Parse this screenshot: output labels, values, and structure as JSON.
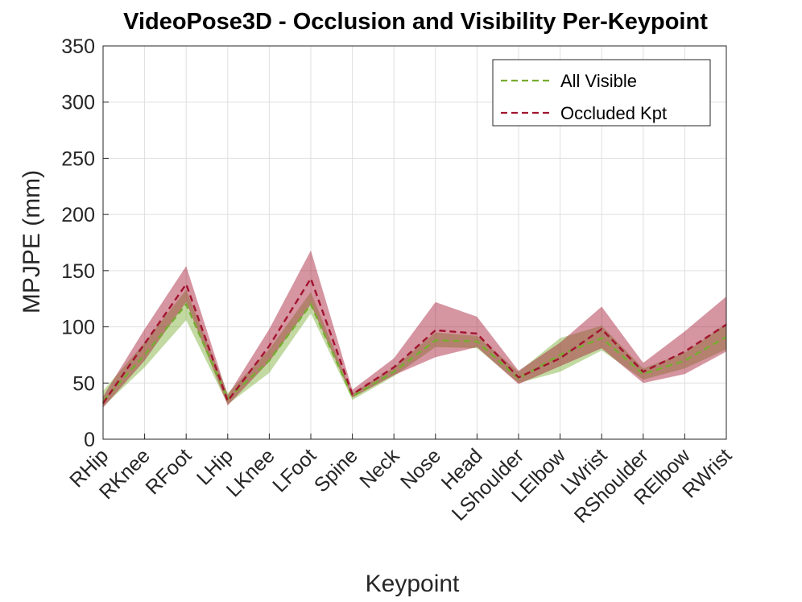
{
  "chart_data": {
    "type": "area",
    "title": "VideoPose3D - Occlusion and Visibility Per-Keypoint",
    "xlabel": "Keypoint",
    "ylabel": "MPJPE (mm)",
    "ylim": [
      0,
      350
    ],
    "yticks": [
      0,
      50,
      100,
      150,
      200,
      250,
      300,
      350
    ],
    "grid": true,
    "legend_position": "top-right",
    "categories": [
      "RHip",
      "RKnee",
      "RFoot",
      "LHip",
      "LKnee",
      "LFoot",
      "Spine",
      "Neck",
      "Nose",
      "Head",
      "LShoulder",
      "LElbow",
      "LWrist",
      "RShoulder",
      "RElbow",
      "RWrist"
    ],
    "series": [
      {
        "name": "All Visible",
        "color": "#77AC30",
        "mean": [
          34,
          75,
          120,
          36,
          70,
          120,
          38,
          60,
          88,
          87,
          54,
          75,
          90,
          58,
          70,
          91
        ],
        "upper": [
          43,
          86,
          133,
          41,
          80,
          131,
          41,
          64,
          95,
          92,
          60,
          90,
          101,
          63,
          77,
          103
        ],
        "lower": [
          29,
          64,
          106,
          31,
          59,
          112,
          35,
          56,
          82,
          81,
          50,
          60,
          79,
          53,
          63,
          80
        ]
      },
      {
        "name": "Occluded Kpt",
        "color": "#A2142F",
        "mean": [
          32,
          85,
          138,
          34,
          83,
          143,
          40,
          64,
          97,
          94,
          55,
          72,
          98,
          60,
          78,
          102
        ],
        "upper": [
          38,
          98,
          154,
          39,
          98,
          168,
          44,
          72,
          122,
          109,
          61,
          86,
          118,
          68,
          96,
          127
        ],
        "lower": [
          28,
          70,
          122,
          30,
          69,
          120,
          37,
          57,
          73,
          82,
          49,
          65,
          81,
          50,
          58,
          78
        ]
      }
    ]
  }
}
